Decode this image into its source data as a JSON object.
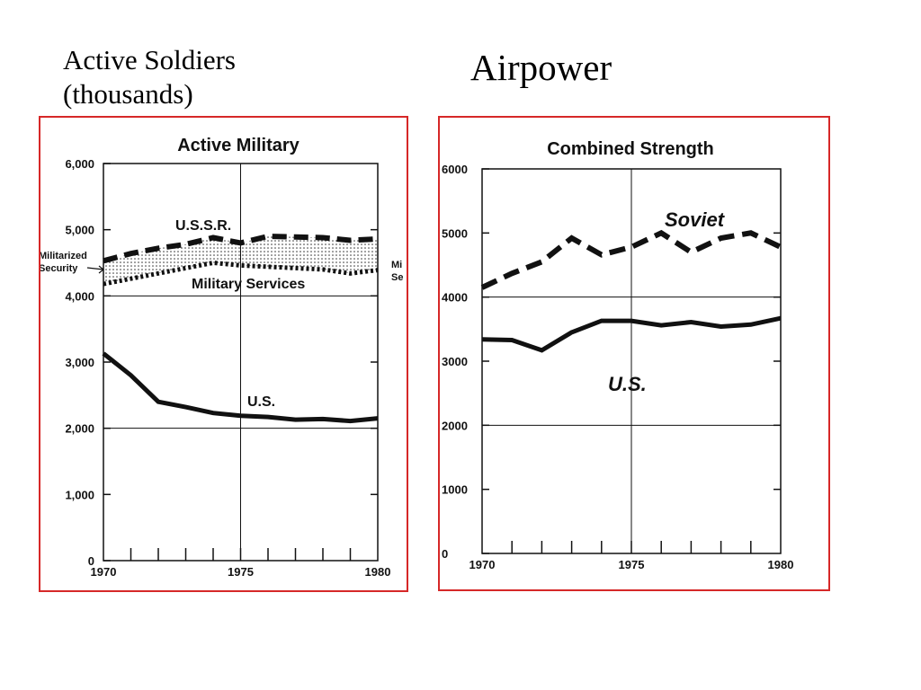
{
  "slide": {
    "left_heading": [
      "Active Soldiers",
      "(thousands)"
    ],
    "right_heading": "Airpower"
  },
  "colors": {
    "panel_border": "#d62828",
    "ink": "#111111"
  },
  "chart_data": [
    {
      "type": "line",
      "title": "Active Military",
      "xlabel": "",
      "ylabel": "",
      "x": [
        1970,
        1971,
        1972,
        1973,
        1974,
        1975,
        1976,
        1977,
        1978,
        1979,
        1980
      ],
      "xlim": [
        1970,
        1980
      ],
      "ylim": [
        0,
        6000
      ],
      "x_tick_labels": [
        "1970",
        "1975",
        "1980"
      ],
      "y_tick_labels": [
        "0",
        "1,000",
        "2,000",
        "3,000",
        "4,000",
        "5,000",
        "6,000"
      ],
      "grid": "lines at 1975 and 2,000 / 4,000",
      "series": [
        {
          "name": "U.S.S.R.",
          "style": "dashed",
          "values": [
            4530,
            4640,
            4720,
            4780,
            4880,
            4800,
            4900,
            4890,
            4880,
            4840,
            4860
          ]
        },
        {
          "name": "Military Services",
          "style": "dotted",
          "values": [
            4180,
            4260,
            4340,
            4420,
            4500,
            4460,
            4440,
            4420,
            4400,
            4340,
            4390
          ]
        },
        {
          "name": "U.S.",
          "style": "solid",
          "values": [
            3130,
            2800,
            2400,
            2320,
            2230,
            2190,
            2170,
            2130,
            2140,
            2110,
            2150
          ]
        }
      ],
      "band": {
        "label_lines": [
          "Militarized",
          "Security"
        ],
        "between": [
          "U.S.S.R.",
          "Military Services"
        ]
      },
      "right_edge_label_fragments": [
        "Mi",
        "Se"
      ]
    },
    {
      "type": "line",
      "title": "Combined Strength",
      "xlabel": "",
      "ylabel": "",
      "x": [
        1970,
        1971,
        1972,
        1973,
        1974,
        1975,
        1976,
        1977,
        1978,
        1979,
        1980
      ],
      "xlim": [
        1970,
        1980
      ],
      "ylim": [
        0,
        6000
      ],
      "x_tick_labels": [
        "1970",
        "1975",
        "1980"
      ],
      "y_tick_labels": [
        "0",
        "1000",
        "2000",
        "3000",
        "4000",
        "5000",
        "6000"
      ],
      "grid": "lines at 1975 and 2000 / 4000",
      "series": [
        {
          "name": "Soviet",
          "style": "dashed",
          "values": [
            4150,
            4370,
            4550,
            4920,
            4660,
            4780,
            5000,
            4700,
            4920,
            5000,
            4780
          ]
        },
        {
          "name": "U.S.",
          "style": "solid",
          "values": [
            3340,
            3330,
            3170,
            3450,
            3630,
            3630,
            3560,
            3610,
            3540,
            3570,
            3670
          ]
        }
      ]
    }
  ]
}
